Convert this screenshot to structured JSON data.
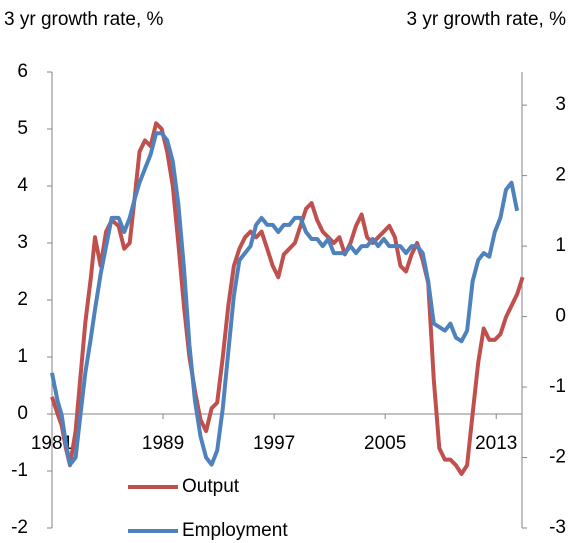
{
  "chart_data": {
    "type": "line",
    "y_label": "3 yr growth rate, %",
    "y2_label": "3 yr growth rate, %",
    "x": [
      1981.0,
      1981.4,
      1981.7,
      1982.0,
      1982.3,
      1982.7,
      1983.1,
      1983.4,
      1983.8,
      1984.1,
      1984.5,
      1984.9,
      1985.3,
      1985.8,
      1986.2,
      1986.6,
      1987.0,
      1987.3,
      1987.7,
      1988.1,
      1988.5,
      1988.9,
      1989.3,
      1989.7,
      1990.1,
      1990.5,
      1990.9,
      1991.3,
      1991.7,
      1992.1,
      1992.5,
      1992.9,
      1993.3,
      1993.7,
      1994.1,
      1994.5,
      1994.9,
      1995.3,
      1995.7,
      1996.1,
      1996.5,
      1996.9,
      1997.3,
      1997.7,
      1998.1,
      1998.5,
      1998.9,
      1999.3,
      1999.7,
      2000.1,
      2000.5,
      2000.9,
      2001.3,
      2001.7,
      2002.1,
      2002.5,
      2002.9,
      2003.3,
      2003.7,
      2004.1,
      2004.5,
      2004.9,
      2005.3,
      2005.7,
      2006.1,
      2006.5,
      2006.9,
      2007.3,
      2007.7,
      2008.1,
      2008.5,
      2008.9,
      2009.3,
      2009.7,
      2010.1,
      2010.5,
      2010.9,
      2011.3,
      2011.7,
      2012.1,
      2012.5,
      2012.9,
      2013.3,
      2013.7,
      2014.1,
      2014.5,
      2014.9
    ],
    "series": [
      {
        "name": "Output",
        "color": "#c0504d",
        "axis": "y",
        "values": [
          0.3,
          0.0,
          -0.2,
          -0.6,
          -0.9,
          -0.3,
          0.8,
          1.6,
          2.4,
          3.1,
          2.6,
          3.2,
          3.4,
          3.3,
          2.9,
          3.0,
          3.9,
          4.6,
          4.8,
          4.7,
          5.1,
          5.0,
          4.6,
          4.0,
          3.0,
          1.9,
          1.0,
          0.4,
          -0.1,
          -0.3,
          0.1,
          0.2,
          1.0,
          1.9,
          2.6,
          2.9,
          3.1,
          3.2,
          3.1,
          3.2,
          2.9,
          2.6,
          2.4,
          2.8,
          2.9,
          3.0,
          3.3,
          3.6,
          3.7,
          3.4,
          3.2,
          3.1,
          3.0,
          3.1,
          2.8,
          3.0,
          3.3,
          3.5,
          3.1,
          3.0,
          3.1,
          3.2,
          3.3,
          3.1,
          2.6,
          2.5,
          2.8,
          3.0,
          2.7,
          2.3,
          0.6,
          -0.6,
          -0.8,
          -0.8,
          -0.9,
          -1.05,
          -0.9,
          0.0,
          0.9,
          1.5,
          1.3,
          1.3,
          1.4,
          1.7,
          1.9,
          2.1,
          2.4
        ]
      },
      {
        "name": "Employment",
        "color": "#4f81bd",
        "axis": "y2",
        "values": [
          -0.8,
          -1.2,
          -1.4,
          -1.8,
          -2.1,
          -2.0,
          -1.3,
          -0.8,
          -0.3,
          0.1,
          0.6,
          1.0,
          1.4,
          1.4,
          1.2,
          1.4,
          1.7,
          1.9,
          2.1,
          2.3,
          2.6,
          2.6,
          2.5,
          2.2,
          1.6,
          0.7,
          -0.4,
          -1.2,
          -1.7,
          -2.0,
          -2.1,
          -1.9,
          -1.3,
          -0.5,
          0.3,
          0.8,
          0.9,
          1.0,
          1.3,
          1.4,
          1.3,
          1.3,
          1.2,
          1.3,
          1.3,
          1.4,
          1.4,
          1.2,
          1.1,
          1.1,
          1.0,
          1.1,
          0.9,
          0.9,
          0.9,
          1.0,
          0.9,
          1.0,
          1.0,
          1.1,
          1.0,
          1.1,
          1.0,
          1.0,
          1.0,
          0.9,
          1.0,
          1.0,
          0.9,
          0.5,
          -0.1,
          -0.15,
          -0.2,
          -0.1,
          -0.3,
          -0.35,
          -0.2,
          0.5,
          0.8,
          0.9,
          0.85,
          1.2,
          1.4,
          1.8,
          1.9,
          1.5,
          null
        ]
      }
    ],
    "xlim": [
      1981,
      2015
    ],
    "xticks": [
      1981,
      1989,
      1997,
      2005,
      2013
    ],
    "ylim": [
      -2,
      6
    ],
    "yticks": [
      -2,
      -1,
      0,
      1,
      2,
      3,
      4,
      5,
      6
    ],
    "y2lim": [
      -3,
      3.47
    ],
    "y2ticks": [
      -3,
      -2,
      -1,
      0,
      1,
      2,
      3
    ],
    "legend": "lower center",
    "grid": false
  }
}
